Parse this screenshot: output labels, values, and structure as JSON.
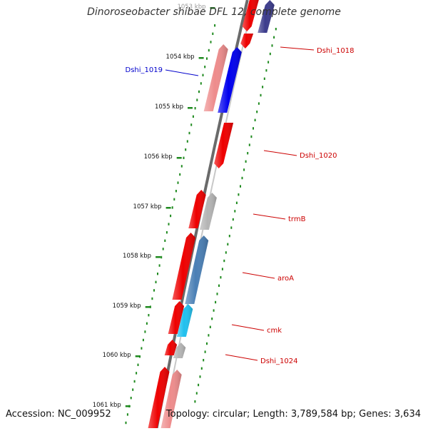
{
  "title": "Dinoroseobacter shibae DFL 12, complete genome",
  "footer": {
    "accession": "Accession: NC_009952",
    "summary": "Topology: circular; Length: 3,789,584 bp; Genes: 3,634"
  },
  "ruler": {
    "ticks": [
      "1053 kbp",
      "1054 kbp",
      "1055 kbp",
      "1056 kbp",
      "1057 kbp",
      "1058 kbp",
      "1059 kbp",
      "1060 kbp",
      "1061 kbp"
    ]
  },
  "colors": {
    "backbone": "#8c8c8c",
    "ruler": "#1f8a1f",
    "gene_label": "#cc0000",
    "highlight_label": "#0000cc",
    "red_gene": "#ee0000",
    "pink_gene": "#ee8c8c",
    "blue_gene": "#0000ee",
    "navy_gene": "#3c3c8c",
    "steel_gene": "#4a7fb5",
    "cyan_gene": "#20c0ee",
    "grey_gene": "#b4b4b4"
  },
  "genes": [
    {
      "label": "",
      "color": "navy_gene",
      "strand": "+"
    },
    {
      "label": "Dshi_1018",
      "color": "red_gene",
      "strand": "-"
    },
    {
      "label": "Dshi_1019",
      "color": "blue_gene",
      "strand": "+"
    },
    {
      "label": "",
      "color": "pink_gene",
      "strand": "+"
    },
    {
      "label": "Dshi_1020",
      "color": "red_gene",
      "strand": "-"
    },
    {
      "label": "trmB",
      "color": "grey_gene",
      "strand": "+"
    },
    {
      "label": "",
      "color": "red_gene",
      "strand": "+"
    },
    {
      "label": "aroA",
      "color": "steel_gene",
      "strand": "+"
    },
    {
      "label": "",
      "color": "red_gene",
      "strand": "+"
    },
    {
      "label": "cmk",
      "color": "cyan_gene",
      "strand": "+"
    },
    {
      "label": "",
      "color": "red_gene",
      "strand": "+"
    },
    {
      "label": "Dshi_1024",
      "color": "grey_gene",
      "strand": "+"
    },
    {
      "label": "",
      "color": "red_gene",
      "strand": "+"
    },
    {
      "label": "",
      "color": "red_gene",
      "strand": "+"
    },
    {
      "label": "",
      "color": "pink_gene",
      "strand": "+"
    }
  ]
}
